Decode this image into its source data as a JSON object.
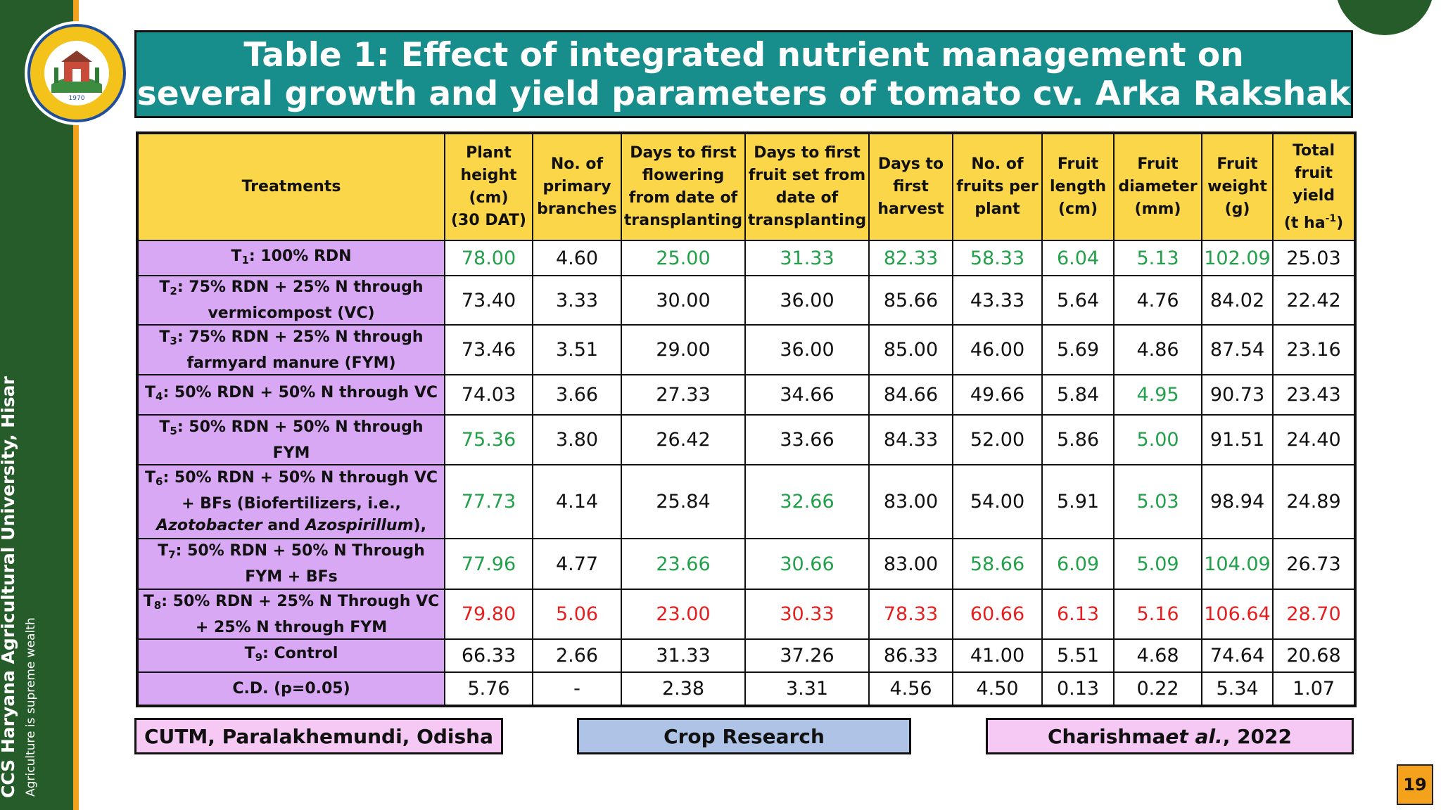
{
  "sidebar": {
    "university": "CCS Haryana Agricultural University, Hisar",
    "motto": "Agriculture is supreme wealth",
    "logo_year": "1970"
  },
  "title": {
    "line1": "Table 1: Effect of integrated nutrient management on",
    "line2": "several growth and yield parameters of tomato cv. Arka Rakshak"
  },
  "table": {
    "headers": [
      [
        "Treatments"
      ],
      [
        "Plant",
        "height",
        "(cm)",
        "(30 DAT)"
      ],
      [
        "No. of",
        "primary",
        "branches"
      ],
      [
        "Days to first",
        "flowering",
        "from date of",
        "transplanting"
      ],
      [
        "Days to first",
        "fruit set from",
        "date of",
        "transplanting"
      ],
      [
        "Days to",
        "first",
        "harvest"
      ],
      [
        "No. of",
        "fruits per",
        "plant"
      ],
      [
        "Fruit",
        "length",
        "(cm)"
      ],
      [
        "Fruit",
        "diameter",
        "(mm)"
      ],
      [
        "Fruit",
        "weight",
        "(g)"
      ],
      [
        "Total",
        "fruit",
        "yield",
        "(t ha",
        "-1",
        ")"
      ]
    ],
    "rows": [
      {
        "treatment": [
          "T",
          "1",
          ": 100% RDN"
        ],
        "values": [
          "78.00",
          "4.60",
          "25.00",
          "31.33",
          "82.33",
          "58.33",
          "6.04",
          "5.13",
          "102.09",
          "25.03"
        ]
      },
      {
        "treatment": [
          "T",
          "2",
          ": 75% RDN + 25% N through",
          "vermicompost (VC)"
        ],
        "values": [
          "73.40",
          "3.33",
          "30.00",
          "36.00",
          "85.66",
          "43.33",
          "5.64",
          "4.76",
          "84.02",
          "22.42"
        ]
      },
      {
        "treatment": [
          "T",
          "3",
          ": 75% RDN + 25% N through",
          "farmyard manure (FYM)"
        ],
        "values": [
          "73.46",
          "3.51",
          "29.00",
          "36.00",
          "85.00",
          "46.00",
          "5.69",
          "4.86",
          "87.54",
          "23.16"
        ]
      },
      {
        "treatment": [
          "T",
          "4",
          ": 50% RDN + 50% N through VC"
        ],
        "values": [
          "74.03",
          "3.66",
          "27.33",
          "34.66",
          "84.66",
          "49.66",
          "5.84",
          "4.95",
          "90.73",
          "23.43"
        ]
      },
      {
        "treatment": [
          "T",
          "5",
          ": 50% RDN + 50% N through",
          "FYM"
        ],
        "values": [
          "75.36",
          "3.80",
          "26.42",
          "33.66",
          "84.33",
          "52.00",
          "5.86",
          "5.00",
          "91.51",
          "24.40"
        ]
      },
      {
        "treatment": [
          "T",
          "6",
          ": 50% RDN + 50% N through VC",
          "+ BFs (Biofertilizers, i.e.,",
          "Azotobacter",
          " and ",
          "Azospirillum",
          "),"
        ],
        "values": [
          "77.73",
          "4.14",
          "25.84",
          "32.66",
          "83.00",
          "54.00",
          "5.91",
          "5.03",
          "98.94",
          "24.89"
        ]
      },
      {
        "treatment": [
          "T",
          "7",
          ": 50% RDN + 50% N Through",
          "FYM + BFs"
        ],
        "values": [
          "77.96",
          "4.77",
          "23.66",
          "30.66",
          "83.00",
          "58.66",
          "6.09",
          "5.09",
          "104.09",
          "26.73"
        ]
      },
      {
        "treatment": [
          "T",
          "8",
          ": 50% RDN + 25% N Through VC",
          "+ 25% N through FYM"
        ],
        "values": [
          "79.80",
          "5.06",
          "23.00",
          "30.33",
          "78.33",
          "60.66",
          "6.13",
          "5.16",
          "106.64",
          "28.70"
        ]
      },
      {
        "treatment": [
          "T",
          "9",
          ": Control"
        ],
        "values": [
          "66.33",
          "2.66",
          "31.33",
          "37.26",
          "86.33",
          "41.00",
          "5.51",
          "4.68",
          "74.64",
          "20.68"
        ]
      },
      {
        "treatment": [
          "C.D. (p=0.05)"
        ],
        "values": [
          "5.76",
          "-",
          "2.38",
          "3.31",
          "4.56",
          "4.50",
          "0.13",
          "0.22",
          "5.34",
          "1.07"
        ]
      }
    ]
  },
  "footer": {
    "left": "CUTM, Paralakhemundi, Odisha",
    "center": "Crop Research",
    "right_author": "Charishma ",
    "right_etal": "et al.",
    "right_year": ", 2022"
  },
  "page_number": "19",
  "colors": {
    "sidebar": "#255c2a",
    "accent_orange": "#f4a21c",
    "title_bg": "#178d8c",
    "header_bg": "#fbd649",
    "treatment_bg": "#d8a8f4",
    "highlight_green": "#22a04a",
    "highlight_red": "#e51f1f"
  }
}
